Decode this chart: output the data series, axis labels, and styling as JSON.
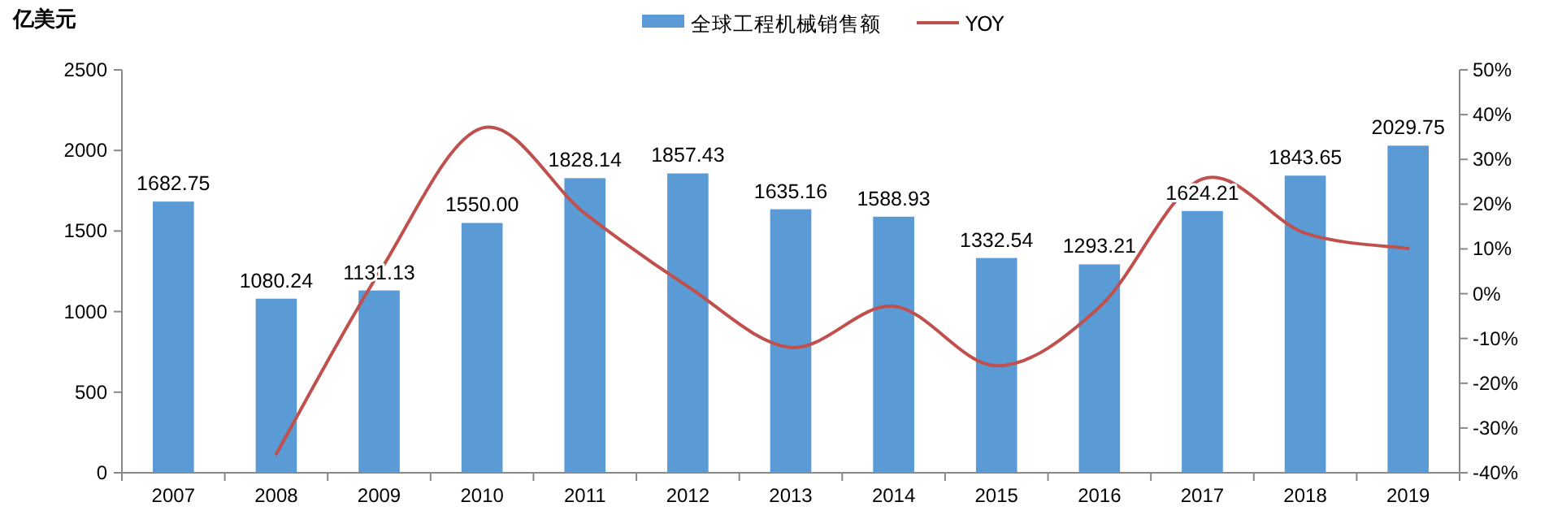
{
  "chart_data": {
    "type": "bar",
    "ylabel": "亿美元",
    "categories": [
      "2007",
      "2008",
      "2009",
      "2010",
      "2011",
      "2012",
      "2013",
      "2014",
      "2015",
      "2016",
      "2017",
      "2018",
      "2019"
    ],
    "series": [
      {
        "name": "全球工程机械销售额",
        "color": "#5b9bd5",
        "values": [
          1682.75,
          1080.24,
          1131.13,
          1550.0,
          1828.14,
          1857.43,
          1635.16,
          1588.93,
          1332.54,
          1293.21,
          1624.21,
          1843.65,
          2029.75
        ],
        "value_labels": [
          "1682.75",
          "1080.24",
          "1131.13",
          "1550.00",
          "1828.14",
          "1857.43",
          "1635.16",
          "1588.93",
          "1332.54",
          "1293.21",
          "1624.21",
          "1843.65",
          "2029.75"
        ]
      },
      {
        "name": "YOY",
        "type": "line",
        "axis": "y2",
        "color": "#c0504d",
        "values": [
          null,
          -35.8,
          4.7,
          37.0,
          17.9,
          1.6,
          -12.0,
          -2.8,
          -16.1,
          -3.0,
          25.6,
          13.5,
          10.1
        ]
      }
    ],
    "ylim": [
      0,
      2500
    ],
    "yticks": [
      0,
      500,
      1000,
      1500,
      2000,
      2500
    ],
    "y2lim": [
      -40,
      50
    ],
    "y2ticks": [
      {
        "value": -40,
        "label": "-40%"
      },
      {
        "value": -30,
        "label": "-30%"
      },
      {
        "value": -20,
        "label": "-20%"
      },
      {
        "value": -10,
        "label": "-10%"
      },
      {
        "value": 0,
        "label": "0%"
      },
      {
        "value": 10,
        "label": "10%"
      },
      {
        "value": 20,
        "label": "20%"
      },
      {
        "value": 30,
        "label": "30%"
      },
      {
        "value": 40,
        "label": "40%"
      },
      {
        "value": 50,
        "label": "50%"
      }
    ],
    "legend": "top",
    "grid": false
  }
}
